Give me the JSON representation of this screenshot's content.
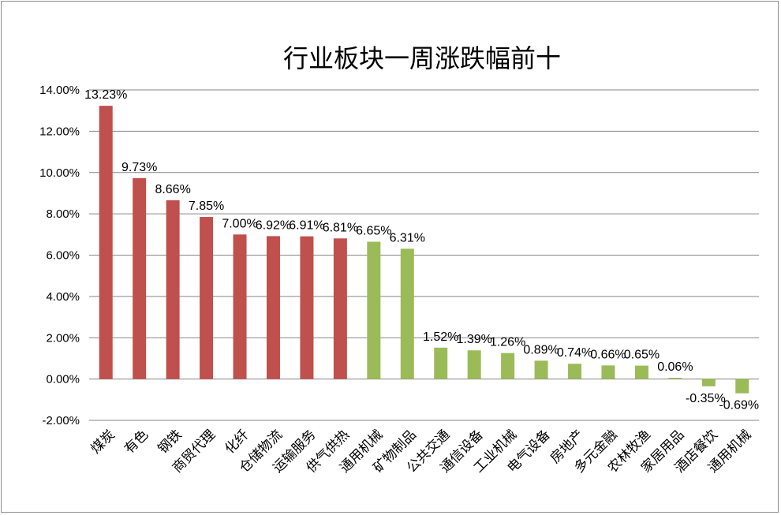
{
  "chart_data": {
    "type": "bar",
    "title": "行业板块一周涨跌幅前十",
    "categories": [
      "煤炭",
      "有色",
      "钢铁",
      "商贸代理",
      "化纤",
      "仓储物流",
      "运输服务",
      "供气供热",
      "通用机械",
      "矿物制品",
      "公共交通",
      "通信设备",
      "工业机械",
      "电气设备",
      "房地产",
      "多元金融",
      "农林牧渔",
      "家居用品",
      "酒店餐饮",
      "通用机械"
    ],
    "values": [
      13.23,
      9.73,
      8.66,
      7.85,
      7.0,
      6.92,
      6.91,
      6.81,
      6.65,
      6.31,
      1.52,
      1.39,
      1.26,
      0.89,
      0.74,
      0.66,
      0.65,
      0.06,
      -0.35,
      -0.69
    ],
    "data_labels": [
      "13.23%",
      "9.73%",
      "8.66%",
      "7.85%",
      "7.00%",
      "6.92%",
      "6.91%",
      "6.81%",
      "6.65%",
      "6.31%",
      "1.52%",
      "1.39%",
      "1.26%",
      "0.89%",
      "0.74%",
      "0.66%",
      "0.65%",
      "0.06%",
      "-0.35%",
      "-0.69%"
    ],
    "bar_colors": [
      "#c0504d",
      "#c0504d",
      "#c0504d",
      "#c0504d",
      "#c0504d",
      "#c0504d",
      "#c0504d",
      "#c0504d",
      "#9bbb59",
      "#9bbb59",
      "#9bbb59",
      "#9bbb59",
      "#9bbb59",
      "#9bbb59",
      "#9bbb59",
      "#9bbb59",
      "#9bbb59",
      "#9bbb59",
      "#9bbb59",
      "#9bbb59"
    ],
    "y_ticks": [
      "14.00%",
      "12.00%",
      "10.00%",
      "8.00%",
      "6.00%",
      "4.00%",
      "2.00%",
      "0.00%",
      "-2.00%"
    ],
    "y_tick_values": [
      14,
      12,
      10,
      8,
      6,
      4,
      2,
      0,
      -2
    ],
    "ylim": [
      -2,
      14
    ],
    "grid": true,
    "legend": "none"
  }
}
